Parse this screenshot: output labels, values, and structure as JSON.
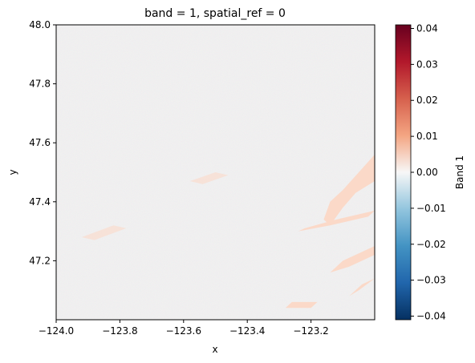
{
  "chart_data": {
    "type": "heatmap",
    "title": "band = 1, spatial_ref = 0",
    "xlabel": "x",
    "ylabel": "y",
    "xlim": [
      -124.0,
      -123.0
    ],
    "ylim": [
      47.0,
      48.0
    ],
    "x_ticks": [
      -124.0,
      -123.8,
      -123.6,
      -123.4,
      -123.2
    ],
    "x_tick_labels": [
      "−124.0",
      "−123.8",
      "−123.6",
      "−123.4",
      "−123.2"
    ],
    "y_ticks": [
      47.2,
      47.4,
      47.6,
      47.8,
      48.0
    ],
    "y_tick_labels": [
      "47.2",
      "47.4",
      "47.6",
      "47.8",
      "48.0"
    ],
    "colorbar": {
      "label": "Band 1",
      "colormap": "RdBu_r",
      "range": [
        -0.041,
        0.041
      ],
      "ticks": [
        -0.04,
        -0.03,
        -0.02,
        -0.01,
        0.0,
        0.01,
        0.02,
        0.03,
        0.04
      ],
      "tick_labels": [
        "−0.04",
        "−0.03",
        "−0.02",
        "−0.01",
        "0.00",
        "0.01",
        "0.02",
        "0.03",
        "0.04"
      ]
    },
    "grid": false,
    "colors": {
      "background_value": "#f1f1f1",
      "positive_feature": "#fbd9c8",
      "negative_max": "#053061",
      "positive_max": "#67001f",
      "neutral": "#f7f7f7"
    }
  }
}
